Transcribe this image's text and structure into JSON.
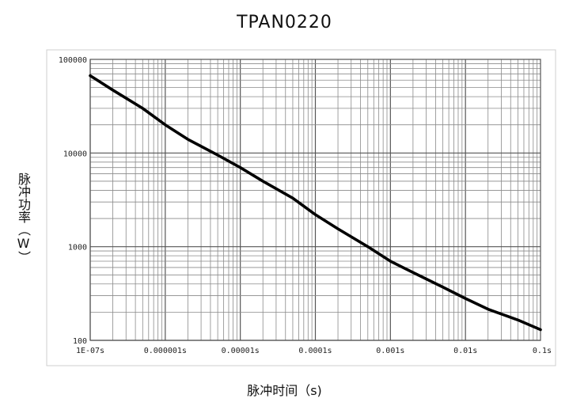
{
  "chart_data": {
    "type": "line",
    "title": "TPAN0220",
    "xlabel": "脉冲时间（s)",
    "ylabel": "脉冲功率（W）",
    "xscale": "log",
    "yscale": "log",
    "xlim": [
      1e-07,
      0.1
    ],
    "ylim": [
      100,
      100000
    ],
    "grid": true,
    "x_ticks": [
      {
        "value": 1e-07,
        "label": "1E-07s"
      },
      {
        "value": 1e-06,
        "label": "0.000001s"
      },
      {
        "value": 1e-05,
        "label": "0.00001s"
      },
      {
        "value": 0.0001,
        "label": "0.0001s"
      },
      {
        "value": 0.001,
        "label": "0.001s"
      },
      {
        "value": 0.01,
        "label": "0.01s"
      },
      {
        "value": 0.1,
        "label": "0.1s"
      }
    ],
    "y_ticks": [
      {
        "value": 100,
        "label": "100"
      },
      {
        "value": 1000,
        "label": "1000"
      },
      {
        "value": 10000,
        "label": "10000"
      },
      {
        "value": 100000,
        "label": "100000"
      }
    ],
    "series": [
      {
        "x": [
          1e-07,
          2e-07,
          5e-07,
          1e-06,
          2e-06,
          5e-06,
          1e-05,
          2e-05,
          5e-05,
          0.0001,
          0.0002,
          0.0005,
          0.001,
          0.002,
          0.005,
          0.01,
          0.02,
          0.05,
          0.1
        ],
        "y": [
          67000,
          47000,
          30000,
          20000,
          14000,
          9500,
          7000,
          5000,
          3300,
          2200,
          1550,
          1000,
          700,
          530,
          370,
          280,
          215,
          165,
          130
        ]
      }
    ]
  }
}
